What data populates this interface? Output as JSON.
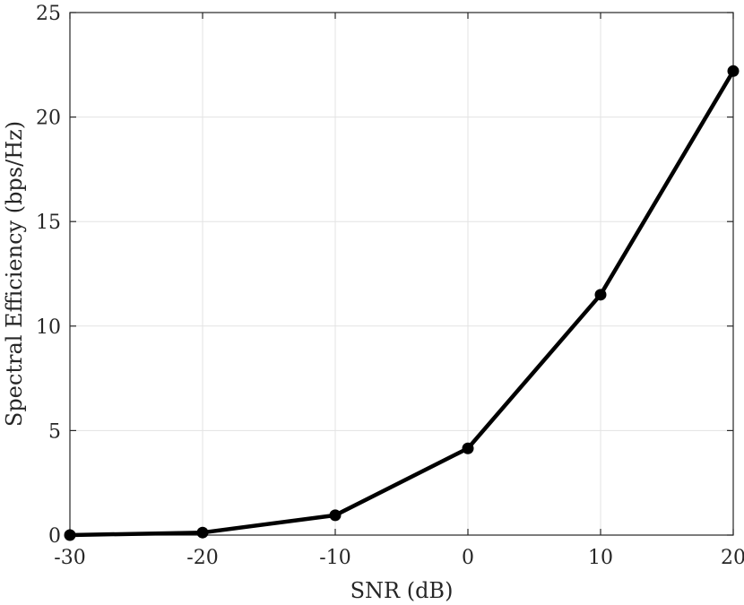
{
  "chart_data": {
    "type": "line",
    "title": "",
    "xlabel": "SNR (dB)",
    "ylabel": "Spectral Efficiency (bps/Hz)",
    "xlim": [
      -30,
      20
    ],
    "ylim": [
      0,
      25
    ],
    "xticks": [
      -30,
      -20,
      -10,
      0,
      10,
      20
    ],
    "yticks": [
      0,
      5,
      10,
      15,
      20,
      25
    ],
    "grid": true,
    "series": [
      {
        "x": [
          -30,
          -20,
          -10,
          0,
          10,
          20
        ],
        "y": [
          0.0,
          0.12,
          0.95,
          4.15,
          11.5,
          22.2
        ],
        "color": "#000000",
        "marker": "circle"
      }
    ]
  }
}
